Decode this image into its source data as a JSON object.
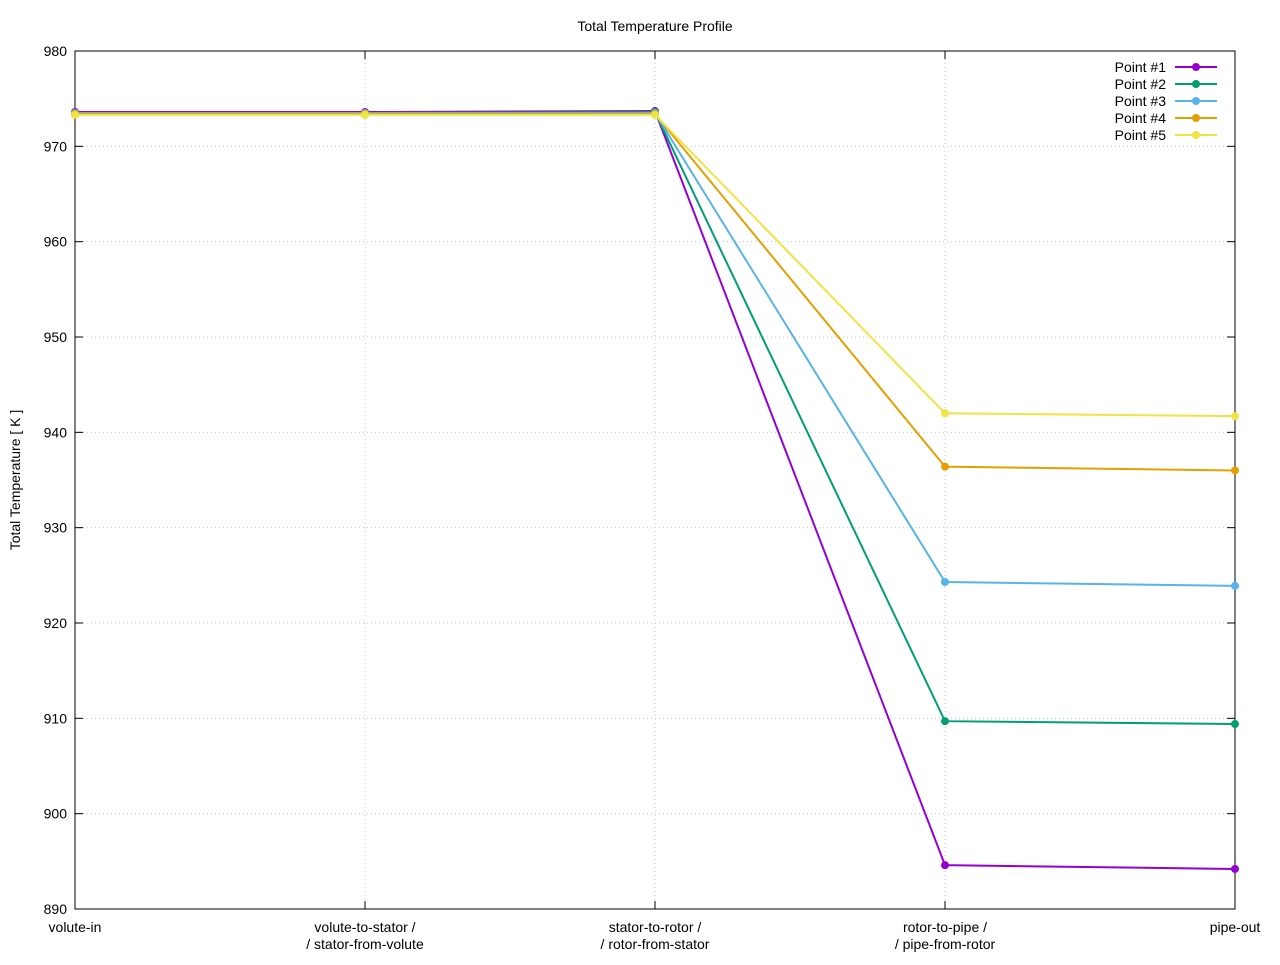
{
  "chart_data": {
    "type": "line",
    "title": "Total Temperature Profile",
    "xlabel": "",
    "ylabel": "Total Temperature [ K ]",
    "categories": [
      [
        "volute-in"
      ],
      [
        "volute-to-stator /",
        "/ stator-from-volute"
      ],
      [
        "stator-to-rotor /",
        "/ rotor-from-stator"
      ],
      [
        "rotor-to-pipe /",
        "/ pipe-from-rotor"
      ],
      [
        "pipe-out"
      ]
    ],
    "ylim": [
      890,
      980
    ],
    "yticks": [
      890,
      900,
      910,
      920,
      930,
      940,
      950,
      960,
      970,
      980
    ],
    "grid": true,
    "legend_position": "top-right",
    "series": [
      {
        "name": "Point #1",
        "color": "#9400d3",
        "values": [
          973.6,
          973.6,
          973.7,
          894.6,
          894.2
        ]
      },
      {
        "name": "Point #2",
        "color": "#009e73",
        "values": [
          973.5,
          973.5,
          973.6,
          909.7,
          909.4
        ]
      },
      {
        "name": "Point #3",
        "color": "#56b4e9",
        "values": [
          973.5,
          973.5,
          973.5,
          924.3,
          923.9
        ]
      },
      {
        "name": "Point #4",
        "color": "#e69f00",
        "values": [
          973.4,
          973.4,
          973.4,
          936.4,
          936.0
        ]
      },
      {
        "name": "Point #5",
        "color": "#f0e442",
        "values": [
          973.3,
          973.3,
          973.3,
          942.0,
          941.7
        ]
      }
    ]
  }
}
